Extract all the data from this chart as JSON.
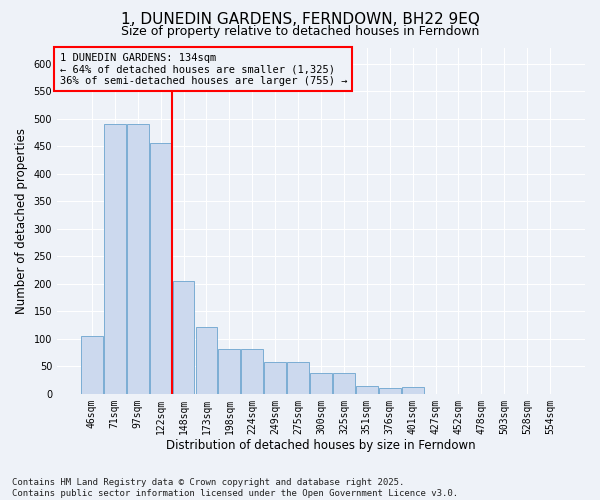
{
  "title1": "1, DUNEDIN GARDENS, FERNDOWN, BH22 9EQ",
  "title2": "Size of property relative to detached houses in Ferndown",
  "xlabel": "Distribution of detached houses by size in Ferndown",
  "ylabel": "Number of detached properties",
  "categories": [
    "46sqm",
    "71sqm",
    "97sqm",
    "122sqm",
    "148sqm",
    "173sqm",
    "198sqm",
    "224sqm",
    "249sqm",
    "275sqm",
    "300sqm",
    "325sqm",
    "351sqm",
    "376sqm",
    "401sqm",
    "427sqm",
    "452sqm",
    "478sqm",
    "503sqm",
    "528sqm",
    "554sqm"
  ],
  "values": [
    105,
    490,
    490,
    457,
    205,
    122,
    82,
    82,
    57,
    57,
    38,
    38,
    15,
    10,
    12,
    0,
    0,
    0,
    0,
    0,
    0
  ],
  "bar_color": "#ccd9ee",
  "bar_edge_color": "#7aadd4",
  "annotation_text": "1 DUNEDIN GARDENS: 134sqm\n← 64% of detached houses are smaller (1,325)\n36% of semi-detached houses are larger (755) →",
  "vline_index": 3.5,
  "vline_color": "red",
  "ylim": [
    0,
    630
  ],
  "yticks": [
    0,
    50,
    100,
    150,
    200,
    250,
    300,
    350,
    400,
    450,
    500,
    550,
    600
  ],
  "footnote1": "Contains HM Land Registry data © Crown copyright and database right 2025.",
  "footnote2": "Contains public sector information licensed under the Open Government Licence v3.0.",
  "background_color": "#eef2f8",
  "grid_color": "#ffffff",
  "title1_fontsize": 11,
  "title2_fontsize": 9,
  "annotation_fontsize": 7.5,
  "axis_label_fontsize": 8.5,
  "tick_fontsize": 7,
  "footnote_fontsize": 6.5
}
